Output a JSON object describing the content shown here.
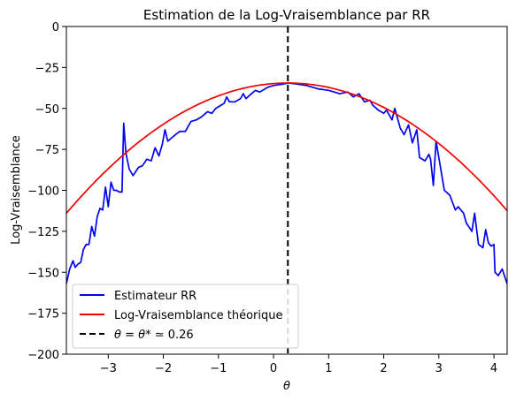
{
  "chart_data": {
    "type": "line",
    "title": "Estimation de la Log-Vraisemblance par RR",
    "xlabel": "θ",
    "ylabel": "Log-Vraisemblance",
    "xlim": [
      -3.76,
      4.24
    ],
    "ylim": [
      -200,
      0
    ],
    "xticks": [
      -3,
      -2,
      -1,
      0,
      1,
      2,
      3,
      4
    ],
    "xtick_labels": [
      "−3",
      "−2",
      "−1",
      "0",
      "1",
      "2",
      "3",
      "4"
    ],
    "yticks": [
      0,
      -25,
      -50,
      -75,
      -100,
      -125,
      -150,
      -175,
      -200
    ],
    "ytick_labels": [
      "0",
      "−25",
      "−50",
      "−75",
      "−100",
      "−125",
      "−150",
      "−175",
      "−200"
    ],
    "grid": false,
    "legend_position": "lower-left",
    "vline": {
      "x": 0.26,
      "label_prefix": "θ = θ* ≃",
      "label_value": "0.26",
      "color": "#000000",
      "style": "dashed"
    },
    "series": [
      {
        "name": "Estimateur RR",
        "color": "#0000ee",
        "points": [
          [
            -3.76,
            -157
          ],
          [
            -3.7,
            -148
          ],
          [
            -3.64,
            -143
          ],
          [
            -3.6,
            -147
          ],
          [
            -3.55,
            -145
          ],
          [
            -3.5,
            -144
          ],
          [
            -3.45,
            -136
          ],
          [
            -3.4,
            -133
          ],
          [
            -3.35,
            -133
          ],
          [
            -3.3,
            -122
          ],
          [
            -3.25,
            -128
          ],
          [
            -3.2,
            -116
          ],
          [
            -3.15,
            -111
          ],
          [
            -3.1,
            -112
          ],
          [
            -3.05,
            -98
          ],
          [
            -3.0,
            -110
          ],
          [
            -2.95,
            -95
          ],
          [
            -2.9,
            -100
          ],
          [
            -2.85,
            -100
          ],
          [
            -2.8,
            -101
          ],
          [
            -2.75,
            -101
          ],
          [
            -2.72,
            -59
          ],
          [
            -2.68,
            -77
          ],
          [
            -2.62,
            -87
          ],
          [
            -2.55,
            -91
          ],
          [
            -2.45,
            -86
          ],
          [
            -2.38,
            -85
          ],
          [
            -2.3,
            -81
          ],
          [
            -2.22,
            -82
          ],
          [
            -2.15,
            -74
          ],
          [
            -2.08,
            -79
          ],
          [
            -2.02,
            -72
          ],
          [
            -1.97,
            -63
          ],
          [
            -1.92,
            -70
          ],
          [
            -1.85,
            -68
          ],
          [
            -1.78,
            -66
          ],
          [
            -1.7,
            -64
          ],
          [
            -1.6,
            -64
          ],
          [
            -1.5,
            -58
          ],
          [
            -1.4,
            -57
          ],
          [
            -1.3,
            -55
          ],
          [
            -1.2,
            -52
          ],
          [
            -1.12,
            -53
          ],
          [
            -1.05,
            -50
          ],
          [
            -1.0,
            -49
          ],
          [
            -0.95,
            -48
          ],
          [
            -0.9,
            -47
          ],
          [
            -0.85,
            -43
          ],
          [
            -0.8,
            -46
          ],
          [
            -0.7,
            -46
          ],
          [
            -0.6,
            -44
          ],
          [
            -0.55,
            -41
          ],
          [
            -0.5,
            -44
          ],
          [
            -0.4,
            -41
          ],
          [
            -0.33,
            -39
          ],
          [
            -0.25,
            -40
          ],
          [
            -0.1,
            -37
          ],
          [
            0.0,
            -36
          ],
          [
            0.2,
            -35
          ],
          [
            0.26,
            -34.5
          ],
          [
            0.4,
            -35
          ],
          [
            0.6,
            -36
          ],
          [
            0.8,
            -38
          ],
          [
            1.0,
            -39
          ],
          [
            1.2,
            -41
          ],
          [
            1.35,
            -40
          ],
          [
            1.45,
            -43
          ],
          [
            1.55,
            -41
          ],
          [
            1.65,
            -46
          ],
          [
            1.75,
            -45
          ],
          [
            1.8,
            -48
          ],
          [
            1.9,
            -51
          ],
          [
            2.0,
            -53
          ],
          [
            2.05,
            -51
          ],
          [
            2.15,
            -57
          ],
          [
            2.2,
            -50
          ],
          [
            2.3,
            -62
          ],
          [
            2.37,
            -66
          ],
          [
            2.45,
            -60
          ],
          [
            2.52,
            -71
          ],
          [
            2.6,
            -63
          ],
          [
            2.65,
            -80
          ],
          [
            2.75,
            -82
          ],
          [
            2.82,
            -78
          ],
          [
            2.85,
            -81
          ],
          [
            2.9,
            -97
          ],
          [
            2.95,
            -70
          ],
          [
            3.05,
            -90
          ],
          [
            3.1,
            -100
          ],
          [
            3.2,
            -103
          ],
          [
            3.3,
            -112
          ],
          [
            3.35,
            -110
          ],
          [
            3.45,
            -114
          ],
          [
            3.5,
            -120
          ],
          [
            3.6,
            -125
          ],
          [
            3.65,
            -114
          ],
          [
            3.72,
            -133
          ],
          [
            3.8,
            -135
          ],
          [
            3.85,
            -124
          ],
          [
            3.9,
            -132
          ],
          [
            3.95,
            -134
          ],
          [
            4.0,
            -133
          ],
          [
            4.02,
            -150
          ],
          [
            4.08,
            -152
          ],
          [
            4.15,
            -148
          ],
          [
            4.24,
            -157
          ]
        ]
      },
      {
        "name": "Log-Vraisemblance théorique",
        "color": "#ee0000",
        "quadratic": {
          "vertex_x": 0.26,
          "vertex_y": -34.5,
          "k": 4.92,
          "step": 0.05
        }
      }
    ]
  }
}
